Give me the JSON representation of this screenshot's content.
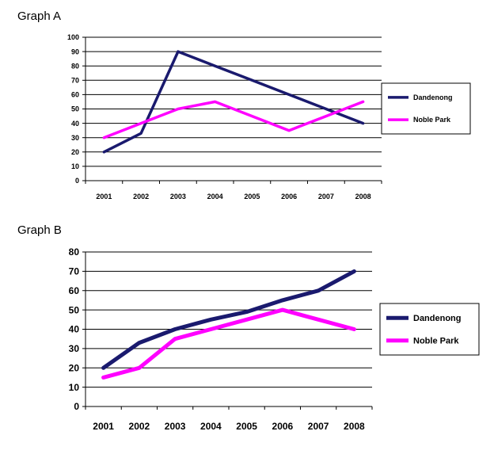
{
  "chart_data": [
    {
      "type": "line",
      "title": "Graph A",
      "categories": [
        "2001",
        "2002",
        "2003",
        "2004",
        "2005",
        "2006",
        "2007",
        "2008"
      ],
      "ylim": [
        0,
        100
      ],
      "yticks": [
        0,
        10,
        20,
        30,
        40,
        50,
        60,
        70,
        80,
        90,
        100
      ],
      "grid": true,
      "legend_position": "right",
      "series": [
        {
          "name": "Dandenong",
          "color": "#1a1a6e",
          "values": [
            20,
            33,
            90,
            80,
            70,
            60,
            50,
            40
          ]
        },
        {
          "name": "Noble Park",
          "color": "#ff00ff",
          "values": [
            30,
            40,
            50,
            55,
            45,
            35,
            45,
            55
          ]
        }
      ]
    },
    {
      "type": "line",
      "title": "Graph B",
      "categories": [
        "2001",
        "2002",
        "2003",
        "2004",
        "2005",
        "2006",
        "2007",
        "2008"
      ],
      "ylim": [
        0,
        80
      ],
      "yticks": [
        0,
        10,
        20,
        30,
        40,
        50,
        60,
        70,
        80
      ],
      "grid": true,
      "legend_position": "right",
      "series": [
        {
          "name": "Dandenong",
          "color": "#1a1a6e",
          "values": [
            20,
            33,
            40,
            45,
            49,
            55,
            60,
            70
          ]
        },
        {
          "name": "Noble Park",
          "color": "#ff00ff",
          "values": [
            15,
            20,
            35,
            40,
            45,
            50,
            45,
            40
          ]
        }
      ]
    }
  ]
}
